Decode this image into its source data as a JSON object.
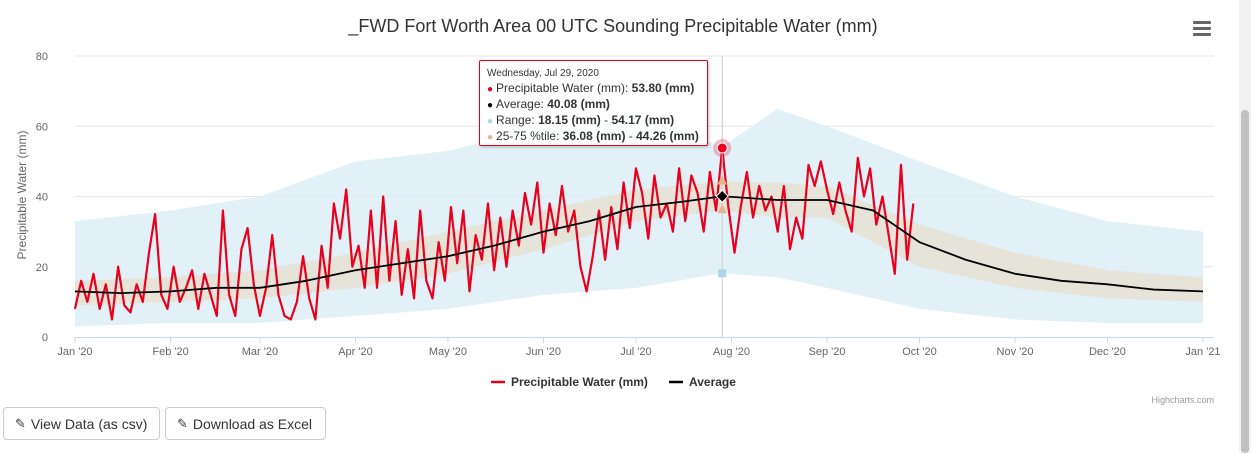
{
  "chart_data": {
    "type": "line",
    "title": "_FWD Fort Worth Area 00 UTC Sounding Precipitable Water (mm)",
    "ylabel": "Precipitable Water (mm)",
    "xlabel": "",
    "ylim": [
      0,
      80
    ],
    "yticks": [
      0,
      20,
      40,
      60,
      80
    ],
    "xlim": [
      "2020-01-01",
      "2021-01-01"
    ],
    "xticks": [
      {
        "date": "2020-01-01",
        "label": "Jan '20"
      },
      {
        "date": "2020-02-01",
        "label": "Feb '20"
      },
      {
        "date": "2020-03-01",
        "label": "Mar '20"
      },
      {
        "date": "2020-04-01",
        "label": "Apr '20"
      },
      {
        "date": "2020-05-01",
        "label": "May '20"
      },
      {
        "date": "2020-06-01",
        "label": "Jun '20"
      },
      {
        "date": "2020-07-01",
        "label": "Jul '20"
      },
      {
        "date": "2020-08-01",
        "label": "Aug '20"
      },
      {
        "date": "2020-09-01",
        "label": "Sep '20"
      },
      {
        "date": "2020-10-01",
        "label": "Oct '20"
      },
      {
        "date": "2020-11-01",
        "label": "Nov '20"
      },
      {
        "date": "2020-12-01",
        "label": "Dec '20"
      },
      {
        "date": "2021-01-01",
        "label": "Jan '21"
      }
    ],
    "grid": true,
    "legend_position": "bottom-center",
    "colors": {
      "observed": "#e8001c",
      "average": "#000000",
      "range": "#dff0f7",
      "iqr": "#e6e0d4",
      "range_marker": "#a8d8e8",
      "iqr_marker": "#e8b48c"
    },
    "series": [
      {
        "name": "Precipitable Water (mm)",
        "kind": "observed",
        "points": [
          [
            "2020-01-01",
            8
          ],
          [
            "2020-01-03",
            16
          ],
          [
            "2020-01-05",
            10
          ],
          [
            "2020-01-07",
            18
          ],
          [
            "2020-01-09",
            8
          ],
          [
            "2020-01-11",
            15
          ],
          [
            "2020-01-13",
            5
          ],
          [
            "2020-01-15",
            20
          ],
          [
            "2020-01-17",
            9
          ],
          [
            "2020-01-19",
            7
          ],
          [
            "2020-01-21",
            15
          ],
          [
            "2020-01-23",
            10
          ],
          [
            "2020-01-25",
            24
          ],
          [
            "2020-01-27",
            35
          ],
          [
            "2020-01-29",
            12
          ],
          [
            "2020-01-31",
            8
          ],
          [
            "2020-02-02",
            20
          ],
          [
            "2020-02-04",
            10
          ],
          [
            "2020-02-06",
            14
          ],
          [
            "2020-02-08",
            19
          ],
          [
            "2020-02-10",
            8
          ],
          [
            "2020-02-12",
            18
          ],
          [
            "2020-02-14",
            12
          ],
          [
            "2020-02-16",
            6
          ],
          [
            "2020-02-18",
            36
          ],
          [
            "2020-02-20",
            12
          ],
          [
            "2020-02-22",
            6
          ],
          [
            "2020-02-24",
            25
          ],
          [
            "2020-02-26",
            31
          ],
          [
            "2020-02-28",
            15
          ],
          [
            "2020-03-01",
            6
          ],
          [
            "2020-03-03",
            14
          ],
          [
            "2020-03-05",
            29
          ],
          [
            "2020-03-07",
            12
          ],
          [
            "2020-03-09",
            6
          ],
          [
            "2020-03-11",
            5
          ],
          [
            "2020-03-13",
            10
          ],
          [
            "2020-03-15",
            23
          ],
          [
            "2020-03-17",
            11
          ],
          [
            "2020-03-19",
            5
          ],
          [
            "2020-03-21",
            26
          ],
          [
            "2020-03-23",
            14
          ],
          [
            "2020-03-25",
            38
          ],
          [
            "2020-03-27",
            28
          ],
          [
            "2020-03-29",
            42
          ],
          [
            "2020-03-31",
            20
          ],
          [
            "2020-04-02",
            26
          ],
          [
            "2020-04-04",
            14
          ],
          [
            "2020-04-06",
            36
          ],
          [
            "2020-04-08",
            14
          ],
          [
            "2020-04-10",
            40
          ],
          [
            "2020-04-12",
            16
          ],
          [
            "2020-04-14",
            33
          ],
          [
            "2020-04-16",
            12
          ],
          [
            "2020-04-18",
            25
          ],
          [
            "2020-04-20",
            11
          ],
          [
            "2020-04-22",
            36
          ],
          [
            "2020-04-24",
            16
          ],
          [
            "2020-04-26",
            11
          ],
          [
            "2020-04-28",
            27
          ],
          [
            "2020-04-30",
            16
          ],
          [
            "2020-05-02",
            37
          ],
          [
            "2020-05-04",
            21
          ],
          [
            "2020-05-06",
            36
          ],
          [
            "2020-05-08",
            13
          ],
          [
            "2020-05-10",
            29
          ],
          [
            "2020-05-12",
            22
          ],
          [
            "2020-05-14",
            38
          ],
          [
            "2020-05-16",
            19
          ],
          [
            "2020-05-18",
            34
          ],
          [
            "2020-05-20",
            20
          ],
          [
            "2020-05-22",
            36
          ],
          [
            "2020-05-24",
            26
          ],
          [
            "2020-05-26",
            41
          ],
          [
            "2020-05-28",
            32
          ],
          [
            "2020-05-30",
            44
          ],
          [
            "2020-06-01",
            24
          ],
          [
            "2020-06-03",
            38
          ],
          [
            "2020-06-05",
            29
          ],
          [
            "2020-06-07",
            43
          ],
          [
            "2020-06-09",
            30
          ],
          [
            "2020-06-11",
            36
          ],
          [
            "2020-06-13",
            20
          ],
          [
            "2020-06-15",
            13
          ],
          [
            "2020-06-17",
            23
          ],
          [
            "2020-06-19",
            36
          ],
          [
            "2020-06-21",
            22
          ],
          [
            "2020-06-23",
            37
          ],
          [
            "2020-06-25",
            25
          ],
          [
            "2020-06-27",
            44
          ],
          [
            "2020-06-29",
            31
          ],
          [
            "2020-07-01",
            48
          ],
          [
            "2020-07-03",
            41
          ],
          [
            "2020-07-05",
            28
          ],
          [
            "2020-07-07",
            46
          ],
          [
            "2020-07-09",
            34
          ],
          [
            "2020-07-11",
            38
          ],
          [
            "2020-07-13",
            30
          ],
          [
            "2020-07-15",
            48
          ],
          [
            "2020-07-17",
            33
          ],
          [
            "2020-07-19",
            46
          ],
          [
            "2020-07-21",
            41
          ],
          [
            "2020-07-23",
            30
          ],
          [
            "2020-07-25",
            47
          ],
          [
            "2020-07-27",
            36
          ],
          [
            "2020-07-29",
            53.8
          ],
          [
            "2020-07-31",
            37
          ],
          [
            "2020-08-02",
            24
          ],
          [
            "2020-08-04",
            37
          ],
          [
            "2020-08-06",
            47
          ],
          [
            "2020-08-08",
            34
          ],
          [
            "2020-08-10",
            43
          ],
          [
            "2020-08-12",
            36
          ],
          [
            "2020-08-14",
            40
          ],
          [
            "2020-08-16",
            30
          ],
          [
            "2020-08-18",
            43
          ],
          [
            "2020-08-20",
            25
          ],
          [
            "2020-08-22",
            34
          ],
          [
            "2020-08-24",
            28
          ],
          [
            "2020-08-26",
            49
          ],
          [
            "2020-08-28",
            43
          ],
          [
            "2020-08-30",
            50
          ],
          [
            "2020-09-01",
            42
          ],
          [
            "2020-09-03",
            35
          ],
          [
            "2020-09-05",
            44
          ],
          [
            "2020-09-07",
            36
          ],
          [
            "2020-09-09",
            30
          ],
          [
            "2020-09-11",
            51
          ],
          [
            "2020-09-13",
            40
          ],
          [
            "2020-09-15",
            48
          ],
          [
            "2020-09-17",
            32
          ],
          [
            "2020-09-19",
            40
          ],
          [
            "2020-09-21",
            29
          ],
          [
            "2020-09-23",
            18
          ],
          [
            "2020-09-25",
            49
          ],
          [
            "2020-09-27",
            22
          ],
          [
            "2020-09-29",
            38
          ]
        ]
      },
      {
        "name": "Average",
        "kind": "average",
        "points": [
          [
            "2020-01-01",
            13
          ],
          [
            "2020-01-16",
            12.5
          ],
          [
            "2020-02-01",
            13
          ],
          [
            "2020-02-16",
            14
          ],
          [
            "2020-03-01",
            14
          ],
          [
            "2020-03-16",
            16
          ],
          [
            "2020-04-01",
            19
          ],
          [
            "2020-04-16",
            21
          ],
          [
            "2020-05-01",
            23
          ],
          [
            "2020-05-16",
            26
          ],
          [
            "2020-06-01",
            30
          ],
          [
            "2020-06-16",
            33
          ],
          [
            "2020-07-01",
            37
          ],
          [
            "2020-07-16",
            38.5
          ],
          [
            "2020-07-29",
            40.08
          ],
          [
            "2020-08-16",
            39
          ],
          [
            "2020-09-01",
            39
          ],
          [
            "2020-09-16",
            36
          ],
          [
            "2020-10-01",
            27
          ],
          [
            "2020-10-16",
            22
          ],
          [
            "2020-11-01",
            18
          ],
          [
            "2020-11-16",
            16
          ],
          [
            "2020-12-01",
            15
          ],
          [
            "2020-12-16",
            13.5
          ],
          [
            "2021-01-01",
            13
          ]
        ]
      },
      {
        "name": "Range",
        "kind": "range",
        "points": [
          [
            "2020-01-01",
            3,
            33
          ],
          [
            "2020-02-01",
            4,
            36
          ],
          [
            "2020-03-01",
            4,
            40
          ],
          [
            "2020-04-01",
            6,
            50
          ],
          [
            "2020-05-01",
            8,
            53
          ],
          [
            "2020-06-01",
            12,
            60
          ],
          [
            "2020-07-01",
            14,
            63
          ],
          [
            "2020-07-29",
            18.15,
            54.17
          ],
          [
            "2020-08-16",
            17,
            65
          ],
          [
            "2020-09-01",
            14,
            60
          ],
          [
            "2020-10-01",
            8,
            50
          ],
          [
            "2020-11-01",
            5,
            40
          ],
          [
            "2020-12-01",
            4,
            33
          ],
          [
            "2021-01-01",
            4,
            30
          ]
        ]
      },
      {
        "name": "25-75 %tile",
        "kind": "iqr",
        "points": [
          [
            "2020-01-01",
            9,
            16
          ],
          [
            "2020-02-01",
            10,
            17
          ],
          [
            "2020-03-01",
            11,
            19
          ],
          [
            "2020-04-01",
            14,
            24
          ],
          [
            "2020-05-01",
            18,
            30
          ],
          [
            "2020-06-01",
            25,
            36
          ],
          [
            "2020-07-01",
            33,
            42
          ],
          [
            "2020-07-29",
            36.08,
            44.26
          ],
          [
            "2020-08-16",
            34,
            44
          ],
          [
            "2020-09-01",
            34,
            43
          ],
          [
            "2020-10-01",
            20,
            32
          ],
          [
            "2020-11-01",
            14,
            24
          ],
          [
            "2020-12-01",
            11,
            19
          ],
          [
            "2021-01-01",
            10,
            17
          ]
        ]
      }
    ],
    "legend": [
      {
        "name": "Precipitable Water (mm)",
        "color": "#e8001c"
      },
      {
        "name": "Average",
        "color": "#000000"
      }
    ],
    "crosshair_date": "2020-07-29",
    "tooltip": {
      "date": "Wednesday, Jul 29, 2020",
      "rows": [
        {
          "label": "Precipitable Water (mm): ",
          "value": "53.80 (mm)",
          "color": "#e8001c"
        },
        {
          "label": "Average: ",
          "value": "40.08 (mm)",
          "color": "#000000"
        },
        {
          "label": "Range: ",
          "value": "18.15 (mm)",
          "sep": " - ",
          "value2": "54.17 (mm)",
          "color": "#a8d8e8"
        },
        {
          "label": "25-75 %tile: ",
          "value": "36.08 (mm)",
          "sep": " - ",
          "value2": "44.26 (mm)",
          "color": "#e8b48c"
        }
      ]
    },
    "credits": "Highcharts.com"
  },
  "buttons": {
    "view_csv": "View Data (as csv)",
    "download_excel": "Download as Excel"
  },
  "icons": {
    "menu": "hamburger-menu-icon",
    "pencil": "pencil-icon"
  }
}
